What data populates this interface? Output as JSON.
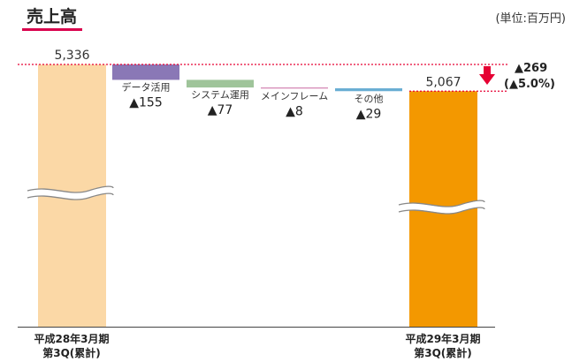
{
  "chart_data": {
    "type": "waterfall",
    "title": "売上高",
    "unit": "(単位:百万円)",
    "colors": {
      "title_underline": "#d9004c",
      "start_bar": "#fbd8a6",
      "end_bar": "#f39800",
      "reference_line": "#e60033",
      "down_arrow": "#e60033",
      "axis": "#444444"
    },
    "start": {
      "value": 5336,
      "label": "5,336",
      "category": [
        "平成28年3月期",
        "第3Q(累計)"
      ]
    },
    "end": {
      "value": 5067,
      "label": "5,067",
      "category": [
        "平成29年3月期",
        "第3Q(累計)"
      ]
    },
    "steps": [
      {
        "name": "データ活用",
        "delta": -155,
        "change_label": "▲155",
        "color": "#8a78b6"
      },
      {
        "name": "システム運用",
        "delta": -77,
        "change_label": "▲77",
        "color": "#9fc49a"
      },
      {
        "name": "メインフレーム",
        "delta": -8,
        "change_label": "▲8",
        "color": "#d27fb0"
      },
      {
        "name": "その他",
        "delta": -29,
        "change_label": "▲29",
        "color": "#6aaed3"
      }
    ],
    "total_change": {
      "label": "▲269",
      "percent_label": "(▲5.0%)"
    }
  }
}
